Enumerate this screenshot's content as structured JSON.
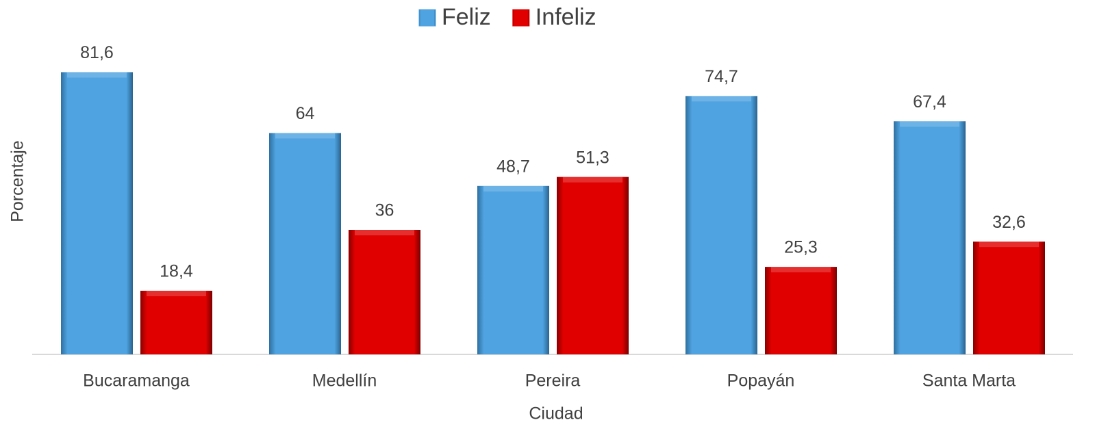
{
  "chart_data": {
    "type": "bar",
    "x_label": "Ciudad",
    "y_label": "Porcentaje",
    "categories": [
      "Bucaramanga",
      "Medellín",
      "Pereira",
      "Popayán",
      "Santa Marta"
    ],
    "series": [
      {
        "name": "Feliz",
        "color": "#4ea3e0",
        "values": [
          81.6,
          64,
          48.7,
          74.7,
          67.4
        ],
        "value_labels": [
          "81,6",
          "64",
          "48,7",
          "74,7",
          "67,4"
        ]
      },
      {
        "name": "Infeliz",
        "color": "#e00000",
        "values": [
          18.4,
          36,
          51.3,
          25.3,
          32.6
        ],
        "value_labels": [
          "18,4",
          "36",
          "51,3",
          "25,3",
          "32,6"
        ]
      }
    ],
    "ylim": [
      0,
      90
    ],
    "legend": "top"
  }
}
